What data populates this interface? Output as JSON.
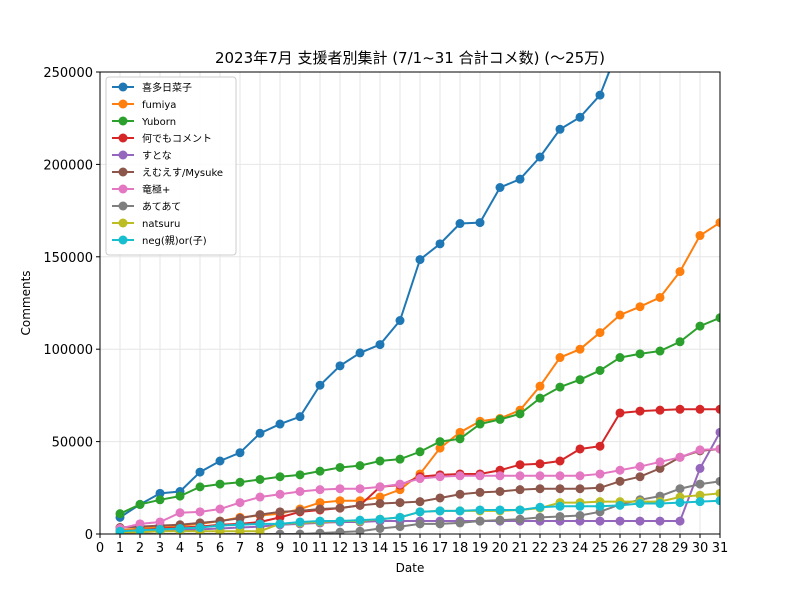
{
  "chart_data": {
    "type": "line",
    "title": "2023年7月 支援者別集計 (7/1~31 合計コメ数) (〜25万)",
    "xlabel": "Date",
    "ylabel": "Comments",
    "xlim": [
      0,
      31
    ],
    "ylim": [
      0,
      250000
    ],
    "x_ticks": [
      0,
      1,
      2,
      3,
      4,
      5,
      6,
      7,
      8,
      9,
      10,
      11,
      12,
      13,
      14,
      15,
      16,
      17,
      18,
      19,
      20,
      21,
      22,
      23,
      24,
      25,
      26,
      27,
      28,
      29,
      30,
      31
    ],
    "y_ticks": [
      0,
      50000,
      100000,
      150000,
      200000,
      250000
    ],
    "grid": true,
    "legend_position": "upper-left",
    "x": [
      1,
      2,
      3,
      4,
      5,
      6,
      7,
      8,
      9,
      10,
      11,
      12,
      13,
      14,
      15,
      16,
      17,
      18,
      19,
      20,
      21,
      22,
      23,
      24,
      25,
      26,
      27,
      28,
      29,
      30,
      31
    ],
    "series": [
      {
        "name": "喜多日菜子",
        "color": "#1f77b4",
        "values": [
          9000,
          16000,
          22000,
          23000,
          33500,
          39500,
          44000,
          54500,
          59500,
          63500,
          80500,
          91000,
          98000,
          102500,
          115500,
          148500,
          157000,
          168000,
          168500,
          187500,
          192000,
          204000,
          219000,
          225500,
          237500,
          265000,
          null,
          null,
          null,
          null,
          null
        ]
      },
      {
        "name": "fumiya",
        "color": "#ff7f0e",
        "values": [
          2000,
          3000,
          3500,
          4500,
          5500,
          7000,
          9000,
          10000,
          11000,
          13500,
          17000,
          18000,
          18000,
          20000,
          24000,
          32500,
          46500,
          55000,
          61000,
          62500,
          67000,
          80000,
          95500,
          100000,
          109000,
          118500,
          123000,
          128000,
          142000,
          161500,
          168500
        ]
      },
      {
        "name": "Yuborn",
        "color": "#2ca02c",
        "values": [
          11000,
          16000,
          18500,
          20500,
          25500,
          27000,
          28000,
          29500,
          31000,
          32000,
          34000,
          36000,
          37000,
          39500,
          40500,
          44500,
          50000,
          51500,
          59500,
          62000,
          65000,
          73500,
          79500,
          83500,
          88500,
          95500,
          97500,
          99000,
          104000,
          112500,
          117000
        ]
      },
      {
        "name": "何でもコメント",
        "color": "#d62728",
        "values": [
          1000,
          2000,
          3000,
          3500,
          4000,
          5000,
          5500,
          6500,
          9000,
          12000,
          13000,
          14000,
          15500,
          25500,
          26500,
          31000,
          32000,
          32500,
          32500,
          34500,
          37500,
          38000,
          39500,
          46000,
          47500,
          65500,
          66500,
          67000,
          67500,
          67500,
          67500
        ]
      },
      {
        "name": "すとな",
        "color": "#9467bd",
        "values": [
          500,
          1000,
          1500,
          2000,
          2500,
          3000,
          3500,
          4000,
          5000,
          5500,
          6000,
          6500,
          6500,
          7000,
          7000,
          7000,
          7000,
          7000,
          7000,
          7000,
          7000,
          7000,
          7000,
          7000,
          7000,
          7000,
          7000,
          7000,
          7000,
          35500,
          55000
        ]
      },
      {
        "name": "えむえす/Mysuke",
        "color": "#8c564b",
        "values": [
          3500,
          4000,
          4500,
          5000,
          6000,
          7000,
          8500,
          10500,
          12000,
          12500,
          13500,
          14000,
          15500,
          16500,
          17000,
          17500,
          19500,
          21500,
          22500,
          23000,
          24000,
          24500,
          24500,
          24500,
          25000,
          28500,
          31000,
          35500,
          41500,
          45000,
          46000
        ]
      },
      {
        "name": "竜極+",
        "color": "#e377c2",
        "values": [
          3000,
          5500,
          6500,
          11500,
          12000,
          13500,
          17000,
          20000,
          21500,
          23000,
          24000,
          24500,
          24500,
          25500,
          27000,
          30000,
          31000,
          31500,
          31500,
          31500,
          31500,
          31500,
          31500,
          31500,
          32500,
          34500,
          36500,
          39000,
          41500,
          45500,
          46000
        ]
      },
      {
        "name": "あてあて",
        "color": "#7f7f7f",
        "values": [
          0,
          0,
          0,
          0,
          0,
          0,
          0,
          0,
          0,
          0,
          500,
          1000,
          1500,
          3000,
          4000,
          5500,
          5500,
          6000,
          7000,
          7500,
          8000,
          9000,
          9500,
          10000,
          12000,
          16000,
          18500,
          20500,
          24500,
          27000,
          28500
        ]
      },
      {
        "name": "natsuru",
        "color": "#bcbd22",
        "values": [
          1000,
          1000,
          1500,
          1500,
          1500,
          1500,
          1500,
          1500,
          5500,
          6000,
          6500,
          7000,
          7000,
          8000,
          9000,
          12000,
          12500,
          12500,
          12500,
          12500,
          13000,
          14000,
          17000,
          17000,
          17500,
          17500,
          17500,
          17500,
          20000,
          21000,
          22000
        ]
      },
      {
        "name": "neg(親)or(子)",
        "color": "#17becf",
        "values": [
          1500,
          2000,
          2500,
          3000,
          3500,
          4500,
          5000,
          5500,
          5500,
          6500,
          7000,
          7000,
          7500,
          8000,
          9000,
          12000,
          12500,
          12500,
          13000,
          13000,
          13000,
          14500,
          15000,
          15000,
          15000,
          15500,
          16500,
          16500,
          17000,
          17500,
          18000
        ]
      }
    ]
  }
}
